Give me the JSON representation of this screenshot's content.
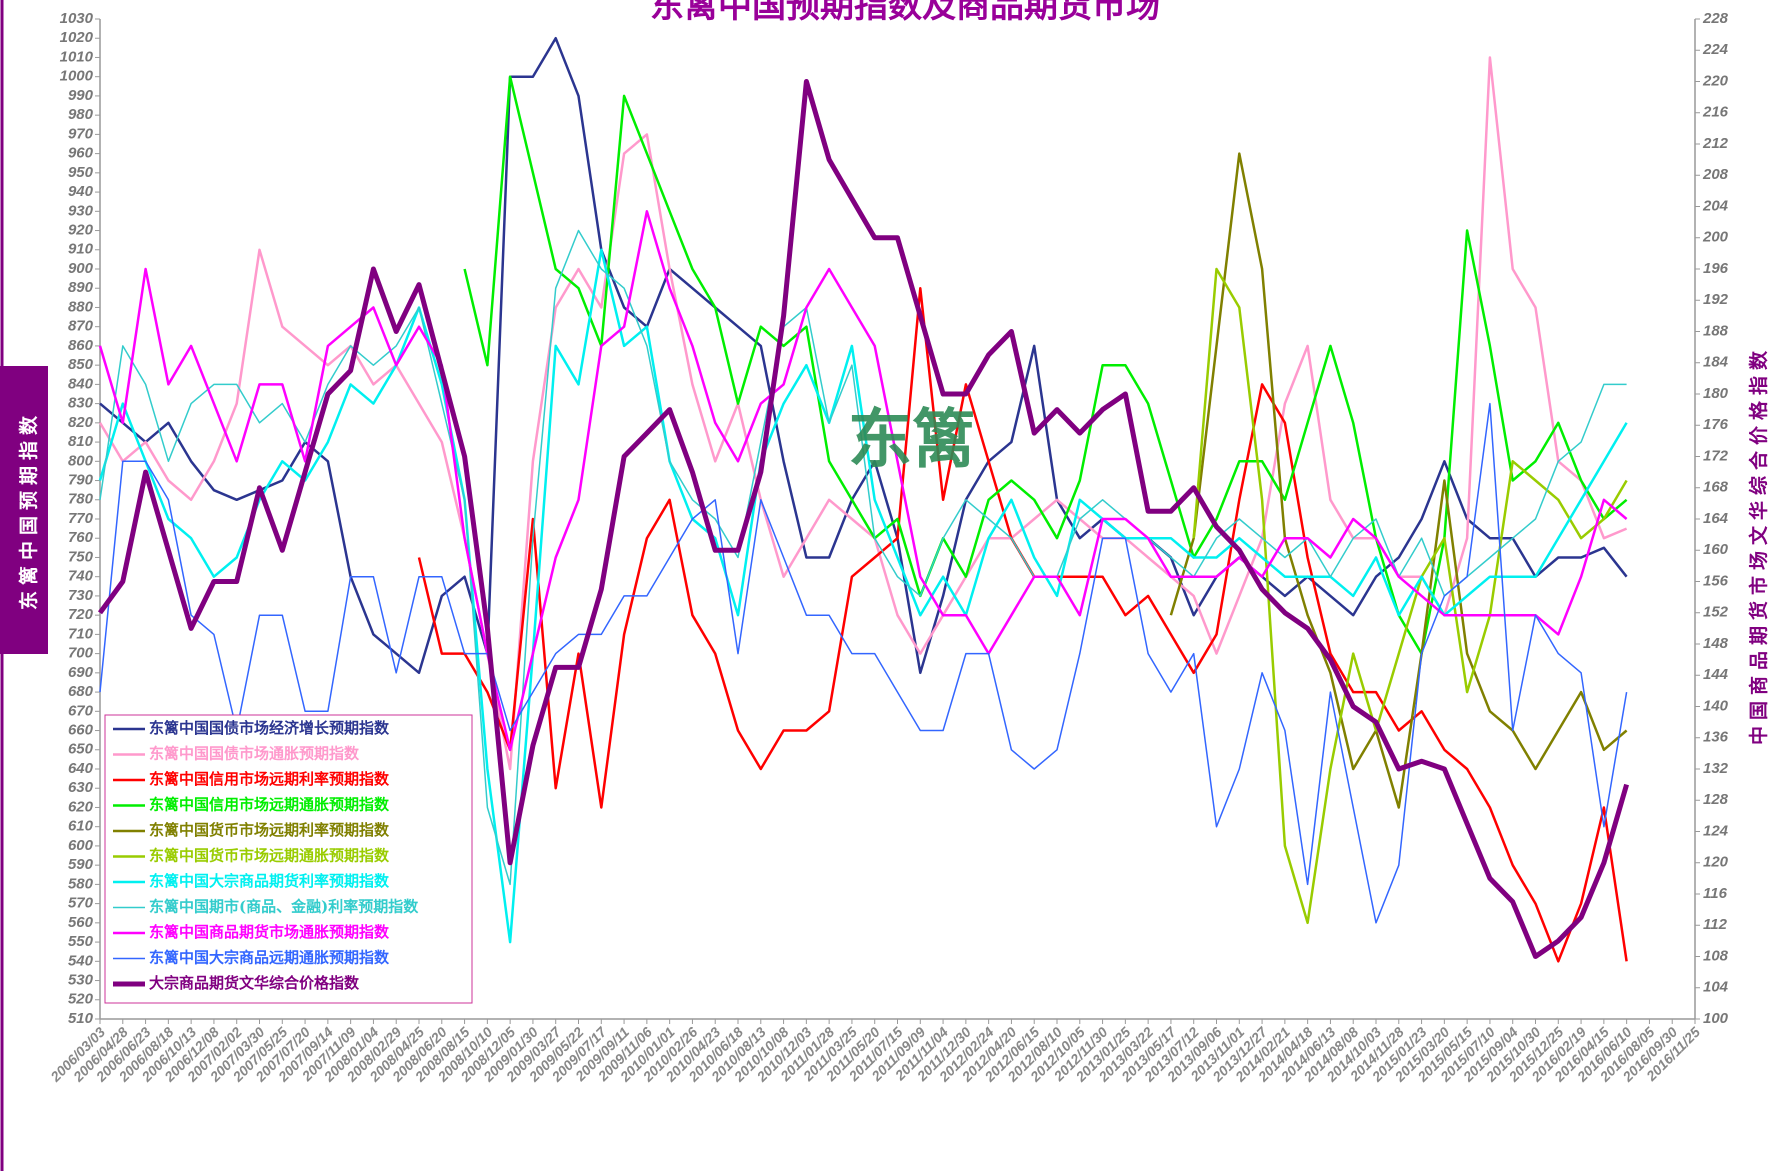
{
  "chart_data": {
    "type": "line",
    "title": "东篱中国预期指数及商品期货市场",
    "y_label": "东篱中国预期指数",
    "y2_label": "中国商品期货市场文华综合价格指数",
    "annotation": "东篱",
    "grid": false,
    "legend": "lower left",
    "categories": [
      "2006/03/03",
      "2006/04/28",
      "2006/06/23",
      "2006/08/18",
      "2006/10/13",
      "2006/12/08",
      "2007/02/02",
      "2007/03/30",
      "2007/05/25",
      "2007/07/20",
      "2007/09/14",
      "2007/11/09",
      "2008/01/04",
      "2008/02/29",
      "2008/04/25",
      "2008/06/20",
      "2008/08/15",
      "2008/10/10",
      "2008/12/05",
      "2009/01/30",
      "2009/03/27",
      "2009/05/22",
      "2009/07/17",
      "2009/09/11",
      "2009/11/06",
      "2010/01/01",
      "2010/02/26",
      "2010/04/23",
      "2010/06/18",
      "2010/08/13",
      "2010/10/08",
      "2010/12/03",
      "2011/01/28",
      "2011/03/25",
      "2011/05/20",
      "2011/07/15",
      "2011/09/09",
      "2011/11/04",
      "2011/12/30",
      "2012/02/24",
      "2012/04/20",
      "2012/06/15",
      "2012/08/10",
      "2012/10/05",
      "2012/11/30",
      "2013/01/25",
      "2013/03/22",
      "2013/05/17",
      "2013/07/12",
      "2013/09/06",
      "2013/11/01",
      "2013/12/27",
      "2014/02/21",
      "2014/04/18",
      "2014/06/13",
      "2014/08/08",
      "2014/10/03",
      "2014/11/28",
      "2015/01/23",
      "2015/03/20",
      "2015/05/15",
      "2015/07/10",
      "2015/09/04",
      "2015/10/30",
      "2015/12/25",
      "2016/02/19",
      "2016/04/15",
      "2016/06/10",
      "2016/08/05",
      "2016/09/30",
      "2016/11/25"
    ],
    "ylim": [
      510,
      1030
    ],
    "yticks": [
      510,
      520,
      530,
      540,
      550,
      560,
      570,
      580,
      590,
      600,
      610,
      620,
      630,
      640,
      650,
      660,
      670,
      680,
      690,
      700,
      710,
      720,
      730,
      740,
      750,
      760,
      770,
      780,
      790,
      800,
      810,
      820,
      830,
      840,
      850,
      860,
      870,
      880,
      890,
      900,
      910,
      920,
      930,
      940,
      950,
      960,
      970,
      980,
      990,
      1000,
      1010,
      1020,
      1030
    ],
    "y2lim": [
      100,
      228
    ],
    "y2ticks": [
      100,
      104,
      108,
      112,
      116,
      120,
      124,
      128,
      132,
      136,
      140,
      144,
      148,
      152,
      156,
      160,
      164,
      168,
      172,
      176,
      180,
      184,
      188,
      192,
      196,
      200,
      204,
      208,
      212,
      216,
      220,
      224,
      228
    ],
    "series": [
      {
        "name": "东篱中国国债市场经济增长预期指数",
        "color": "#2b3590",
        "line_width": 2.5,
        "values": [
          830,
          820,
          810,
          820,
          800,
          785,
          780,
          785,
          790,
          810,
          800,
          740,
          710,
          700,
          690,
          730,
          740,
          700,
          1000,
          1000,
          1020,
          990,
          910,
          880,
          870,
          900,
          890,
          880,
          870,
          860,
          800,
          750,
          750,
          780,
          800,
          760,
          690,
          730,
          780,
          800,
          810,
          860,
          780,
          760,
          770,
          760,
          760,
          750,
          720,
          740,
          750,
          740,
          730,
          740,
          730,
          720,
          740,
          750,
          770,
          800,
          770,
          760,
          760,
          740,
          750,
          750,
          755,
          740,
          null,
          null,
          null
        ]
      },
      {
        "name": "东篱中国国债市场通胀预期指数",
        "color": "#ff99cc",
        "line_width": 2.5,
        "values": [
          820,
          800,
          810,
          790,
          780,
          800,
          830,
          910,
          870,
          860,
          850,
          860,
          840,
          850,
          830,
          810,
          760,
          700,
          640,
          800,
          880,
          900,
          880,
          960,
          970,
          900,
          840,
          800,
          830,
          780,
          740,
          760,
          780,
          770,
          760,
          720,
          700,
          720,
          740,
          760,
          760,
          770,
          780,
          770,
          760,
          760,
          750,
          740,
          730,
          700,
          730,
          760,
          830,
          860,
          780,
          760,
          760,
          740,
          740,
          720,
          760,
          1010,
          900,
          880,
          800,
          790,
          760,
          765,
          null,
          null,
          null
        ]
      },
      {
        "name": "东篱中国信用市场远期利率预期指数",
        "color": "#ff0000",
        "line_width": 2.5,
        "values": [
          null,
          null,
          null,
          null,
          null,
          null,
          null,
          null,
          null,
          null,
          null,
          null,
          null,
          null,
          750,
          700,
          700,
          680,
          650,
          770,
          630,
          700,
          620,
          710,
          760,
          780,
          720,
          700,
          660,
          640,
          660,
          660,
          670,
          740,
          750,
          760,
          890,
          780,
          840,
          800,
          760,
          740,
          740,
          740,
          740,
          720,
          730,
          710,
          690,
          710,
          780,
          840,
          820,
          750,
          700,
          680,
          680,
          660,
          670,
          650,
          640,
          620,
          590,
          570,
          540,
          570,
          620,
          540,
          null,
          null,
          null
        ]
      },
      {
        "name": "东篱中国信用市场远期通胀预期指数",
        "color": "#00ee00",
        "line_width": 2.5,
        "values": [
          null,
          null,
          null,
          null,
          null,
          null,
          null,
          null,
          null,
          null,
          null,
          null,
          null,
          null,
          null,
          null,
          900,
          850,
          1000,
          950,
          900,
          890,
          860,
          990,
          960,
          930,
          900,
          880,
          830,
          870,
          860,
          870,
          800,
          780,
          760,
          770,
          730,
          760,
          740,
          780,
          790,
          780,
          760,
          790,
          850,
          850,
          830,
          790,
          750,
          770,
          800,
          800,
          780,
          820,
          860,
          820,
          760,
          720,
          700,
          760,
          920,
          860,
          790,
          800,
          820,
          790,
          770,
          780,
          null,
          null,
          null
        ]
      },
      {
        "name": "东篱中国货币市场远期利率预期指数",
        "color": "#808000",
        "line_width": 2.5,
        "values": [
          null,
          null,
          null,
          null,
          null,
          null,
          null,
          null,
          null,
          null,
          null,
          null,
          null,
          null,
          null,
          null,
          null,
          null,
          null,
          null,
          null,
          null,
          null,
          null,
          null,
          null,
          null,
          null,
          null,
          null,
          null,
          null,
          null,
          null,
          null,
          null,
          null,
          null,
          null,
          null,
          null,
          null,
          null,
          null,
          null,
          null,
          null,
          720,
          760,
          860,
          960,
          900,
          760,
          720,
          690,
          640,
          660,
          620,
          700,
          790,
          700,
          670,
          660,
          640,
          660,
          680,
          650,
          660,
          null,
          null,
          null
        ]
      },
      {
        "name": "东篱中国货币市场远期通胀预期指数",
        "color": "#99cc00",
        "line_width": 2.5,
        "values": [
          null,
          null,
          null,
          null,
          null,
          null,
          null,
          null,
          null,
          null,
          null,
          null,
          null,
          null,
          null,
          null,
          null,
          null,
          null,
          null,
          null,
          null,
          null,
          null,
          null,
          null,
          null,
          null,
          null,
          null,
          null,
          null,
          null,
          null,
          null,
          null,
          null,
          null,
          null,
          null,
          null,
          null,
          null,
          null,
          null,
          null,
          null,
          null,
          760,
          900,
          880,
          780,
          600,
          560,
          640,
          700,
          660,
          700,
          740,
          760,
          680,
          720,
          800,
          790,
          780,
          760,
          770,
          790,
          null,
          null,
          null
        ]
      },
      {
        "name": "东篱中国大宗商品期货利率预期指数",
        "color": "#00f0f0",
        "line_width": 2.5,
        "values": [
          790,
          830,
          800,
          770,
          760,
          740,
          750,
          780,
          800,
          790,
          810,
          840,
          830,
          850,
          880,
          840,
          780,
          640,
          550,
          700,
          860,
          840,
          910,
          860,
          870,
          800,
          770,
          760,
          720,
          800,
          830,
          850,
          820,
          860,
          780,
          750,
          720,
          740,
          720,
          760,
          780,
          750,
          730,
          780,
          770,
          760,
          760,
          760,
          750,
          750,
          760,
          750,
          740,
          740,
          740,
          730,
          750,
          720,
          740,
          720,
          730,
          740,
          740,
          740,
          760,
          780,
          800,
          820,
          null,
          null,
          null
        ]
      },
      {
        "name": "东篱中国期市(商品、金融)利率预期指数",
        "color": "#33cccc",
        "line_width": 1.5,
        "values": [
          780,
          860,
          840,
          800,
          830,
          840,
          840,
          820,
          830,
          810,
          840,
          860,
          850,
          860,
          880,
          830,
          780,
          620,
          580,
          760,
          890,
          920,
          900,
          890,
          860,
          800,
          780,
          770,
          750,
          810,
          870,
          880,
          820,
          850,
          760,
          740,
          730,
          760,
          780,
          770,
          760,
          740,
          740,
          770,
          780,
          770,
          760,
          750,
          740,
          760,
          770,
          760,
          750,
          760,
          740,
          760,
          770,
          740,
          760,
          730,
          740,
          750,
          760,
          770,
          800,
          810,
          840,
          840,
          null,
          null,
          null
        ]
      },
      {
        "name": "东篱中国商品期货市场通胀预期指数",
        "color": "#ff00ff",
        "line_width": 2.5,
        "values": [
          860,
          820,
          900,
          840,
          860,
          830,
          800,
          840,
          840,
          800,
          860,
          870,
          880,
          850,
          870,
          850,
          760,
          700,
          650,
          700,
          750,
          780,
          860,
          870,
          930,
          890,
          860,
          820,
          800,
          830,
          840,
          880,
          900,
          880,
          860,
          800,
          740,
          720,
          720,
          700,
          720,
          740,
          740,
          720,
          770,
          770,
          760,
          740,
          740,
          740,
          750,
          740,
          760,
          760,
          750,
          770,
          760,
          740,
          730,
          720,
          720,
          720,
          720,
          720,
          710,
          740,
          780,
          770,
          null,
          null,
          null
        ]
      },
      {
        "name": "东篱中国大宗商品远期通胀预期指数",
        "color": "#3366ff",
        "line_width": 1.5,
        "values": [
          680,
          800,
          800,
          780,
          720,
          710,
          660,
          720,
          720,
          670,
          670,
          740,
          740,
          690,
          740,
          740,
          700,
          700,
          660,
          680,
          700,
          710,
          710,
          730,
          730,
          750,
          770,
          780,
          700,
          780,
          750,
          720,
          720,
          700,
          700,
          680,
          660,
          660,
          700,
          700,
          650,
          640,
          650,
          700,
          760,
          760,
          700,
          680,
          700,
          610,
          640,
          690,
          660,
          580,
          680,
          620,
          560,
          590,
          700,
          730,
          740,
          830,
          660,
          720,
          700,
          690,
          610,
          680,
          null,
          null,
          null
        ]
      },
      {
        "name": "大宗商品期货文华综合价格指数",
        "color": "#800080",
        "line_width": 5,
        "axis": "y2",
        "values": [
          152,
          156,
          170,
          160,
          150,
          156,
          156,
          168,
          160,
          170,
          180,
          183,
          196,
          188,
          194,
          183,
          172,
          150,
          120,
          135,
          145,
          145,
          155,
          172,
          175,
          178,
          170,
          160,
          160,
          170,
          190,
          220,
          210,
          205,
          200,
          200,
          190,
          180,
          180,
          185,
          188,
          175,
          178,
          175,
          178,
          180,
          165,
          165,
          168,
          163,
          160,
          155,
          152,
          150,
          146,
          140,
          138,
          132,
          133,
          132,
          125,
          118,
          115,
          108,
          110,
          113,
          120,
          130,
          null,
          null,
          null
        ]
      }
    ]
  }
}
